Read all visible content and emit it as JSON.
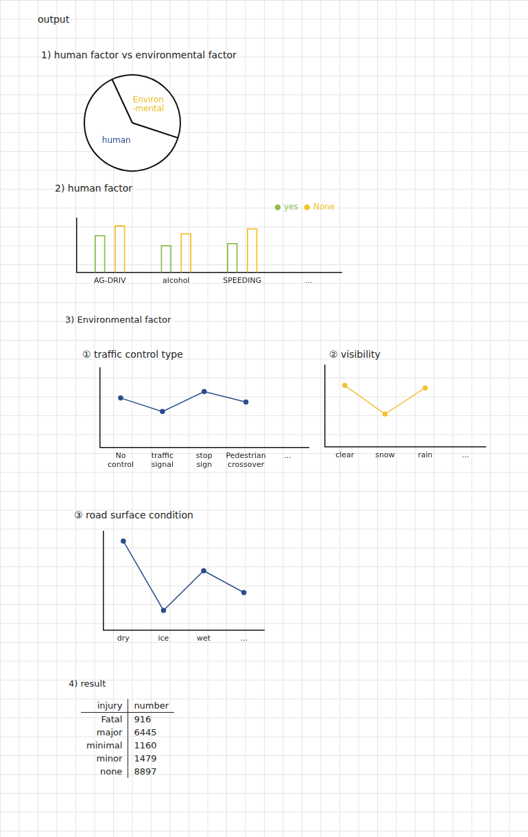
{
  "title": "output",
  "chart_data": [
    {
      "type": "pie",
      "title": "1) human factor vs environmental factor",
      "categories": [
        "Environ-mental",
        "human"
      ],
      "values": [
        37,
        63
      ],
      "colors": [
        "#e8b923",
        "#2b4c8c"
      ]
    },
    {
      "type": "bar",
      "title": "2) human factor",
      "categories": [
        "AG-DRIV",
        "alcohol",
        "SPEEDING",
        "..."
      ],
      "series": [
        {
          "name": "yes",
          "color": "#8cc152",
          "values": [
            38,
            28,
            30,
            null
          ]
        },
        {
          "name": "None",
          "color": "#f2c230",
          "values": [
            48,
            40,
            45,
            null
          ]
        }
      ],
      "ylim": [
        0,
        55
      ],
      "legend": "top-right",
      "tick_labels": "x",
      "grid": false
    },
    {
      "type": "line",
      "title": "① traffic control type",
      "categories": [
        "No control",
        "traffic signal",
        "stop sign",
        "Pedestrian crossover",
        "..."
      ],
      "values": [
        62,
        45,
        70,
        57,
        null
      ],
      "color": "#2b4c8c",
      "marker": "circle",
      "ylim": [
        0,
        100
      ],
      "tick_labels": "x",
      "grid": false
    },
    {
      "type": "line",
      "title": "② visibility",
      "categories": [
        "clear",
        "snow",
        "rain",
        "..."
      ],
      "values": [
        75,
        40,
        72,
        null
      ],
      "color": "#f2c230",
      "marker": "circle",
      "ylim": [
        0,
        100
      ],
      "tick_labels": "x",
      "grid": false
    },
    {
      "type": "line",
      "title": "③ road surface condition",
      "categories": [
        "dry",
        "ice",
        "wet",
        "..."
      ],
      "values": [
        90,
        20,
        60,
        38
      ],
      "color": "#2b4c8c",
      "marker": "circle",
      "ylim": [
        0,
        100
      ],
      "tick_labels": "x",
      "grid": false
    }
  ],
  "section_title": "3) Environmental factor",
  "table": {
    "title": "4) result",
    "columns": [
      "injury",
      "number"
    ],
    "rows": [
      [
        "Fatal",
        916
      ],
      [
        "major",
        6445
      ],
      [
        "minimal",
        1160
      ],
      [
        "minor",
        1479
      ],
      [
        "none",
        8897
      ]
    ]
  }
}
